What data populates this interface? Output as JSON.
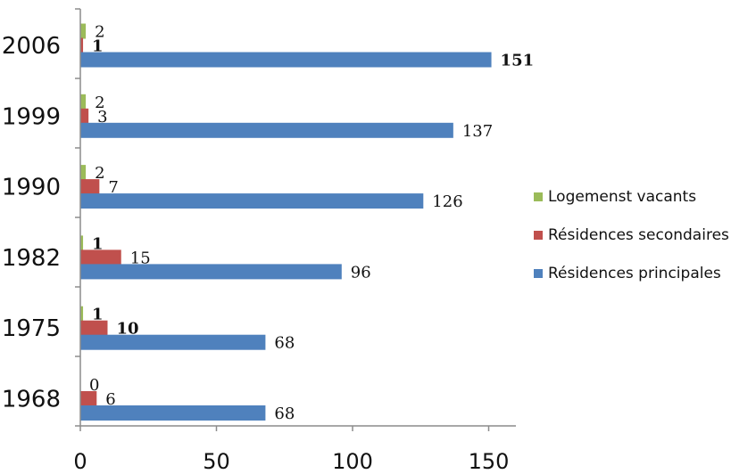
{
  "chart_data": {
    "type": "bar",
    "orientation": "horizontal",
    "categories": [
      "1968",
      "1975",
      "1982",
      "1990",
      "1999",
      "2006"
    ],
    "series": [
      {
        "name": "Logemenst vacants",
        "values": [
          0,
          1,
          1,
          2,
          2,
          2
        ],
        "color": "#9bbb59",
        "label_bold": [
          false,
          true,
          true,
          false,
          false,
          false
        ]
      },
      {
        "name": "Résidences secondaires",
        "values": [
          6,
          10,
          15,
          7,
          3,
          1
        ],
        "color": "#c0504d",
        "label_bold": [
          false,
          true,
          false,
          false,
          false,
          true
        ]
      },
      {
        "name": "Résidences principales",
        "values": [
          68,
          68,
          96,
          126,
          137,
          151
        ],
        "color": "#4f81bd",
        "label_bold": [
          false,
          false,
          false,
          false,
          false,
          true
        ]
      }
    ],
    "xlim": [
      0,
      160
    ],
    "xticks": [
      "0",
      "50",
      "100",
      "150"
    ],
    "xtick_values": [
      0,
      50,
      100,
      150
    ],
    "grid": false,
    "legend_position": "right",
    "title": "",
    "xlabel": "",
    "ylabel": ""
  }
}
